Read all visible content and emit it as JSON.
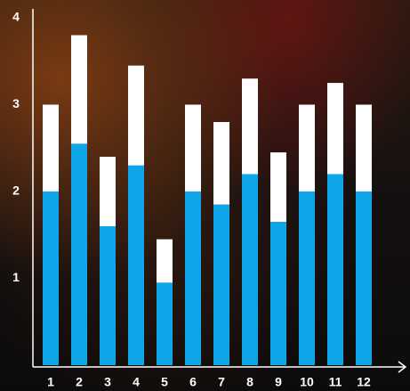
{
  "chart_data": {
    "type": "stacked-bar",
    "categories": [
      "1",
      "2",
      "3",
      "4",
      "5",
      "6",
      "7",
      "8",
      "9",
      "10",
      "11",
      "12"
    ],
    "series": [
      {
        "color": "#0ea5e9",
        "values": [
          2.0,
          2.55,
          1.6,
          2.3,
          0.95,
          2.0,
          1.85,
          2.2,
          1.65,
          2.0,
          2.2,
          2.0
        ]
      },
      {
        "color": "#ffffff",
        "values": [
          1.0,
          1.25,
          0.8,
          1.15,
          0.5,
          1.0,
          0.95,
          1.1,
          0.8,
          1.0,
          1.05,
          1.0
        ]
      }
    ],
    "ylim": [
      0,
      4
    ],
    "yticks": [
      1,
      2,
      3,
      4
    ],
    "grid": false
  }
}
